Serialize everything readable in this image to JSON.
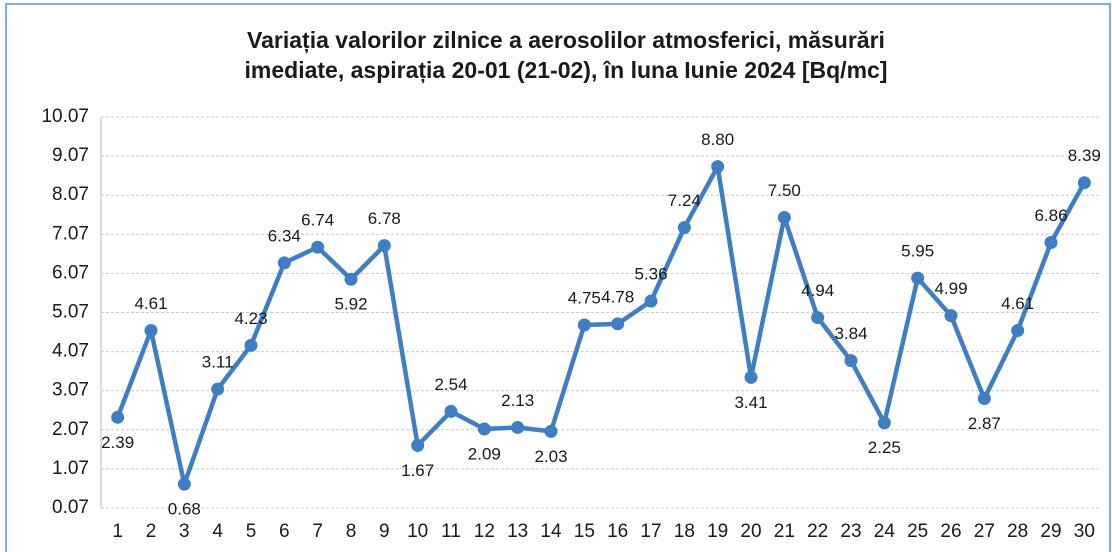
{
  "chart_data": {
    "type": "line",
    "title": [
      "Variația valorilor zilnice a aerosolilor atmosferici, măsurări",
      "imediate, aspirația 20-01 (21-02), în luna Iunie 2024 [Bq/mc]"
    ],
    "categories": [
      "1",
      "2",
      "3",
      "4",
      "5",
      "6",
      "7",
      "8",
      "9",
      "10",
      "11",
      "12",
      "13",
      "14",
      "15",
      "16",
      "17",
      "18",
      "19",
      "20",
      "21",
      "22",
      "23",
      "24",
      "25",
      "26",
      "27",
      "28",
      "29",
      "30"
    ],
    "values": [
      2.39,
      4.61,
      0.68,
      3.11,
      4.23,
      6.34,
      6.74,
      5.92,
      6.78,
      1.67,
      2.54,
      2.09,
      2.13,
      2.03,
      4.75,
      4.78,
      5.36,
      7.24,
      8.8,
      3.41,
      7.5,
      4.94,
      3.84,
      2.25,
      5.95,
      4.99,
      2.87,
      4.61,
      6.86,
      8.39
    ],
    "value_labels": [
      "2.39",
      "4.61",
      "0.68",
      "3.11",
      "4.23",
      "6.34",
      "6.74",
      "5.92",
      "6.78",
      "1.67",
      "2.54",
      "2.09",
      "2.13",
      "2.03",
      "4.75",
      "4.78",
      "5.36",
      "7.24",
      "8.80",
      "3.41",
      "7.50",
      "4.94",
      "3.84",
      "2.25",
      "5.95",
      "4.99",
      "2.87",
      "4.61",
      "6.86",
      "8.39"
    ],
    "color": "#3f7ec2",
    "ylim": [
      0.07,
      10.07
    ],
    "yticks": [
      0.07,
      1.07,
      2.07,
      3.07,
      4.07,
      5.07,
      6.07,
      7.07,
      8.07,
      9.07,
      10.07
    ],
    "grid": true
  }
}
